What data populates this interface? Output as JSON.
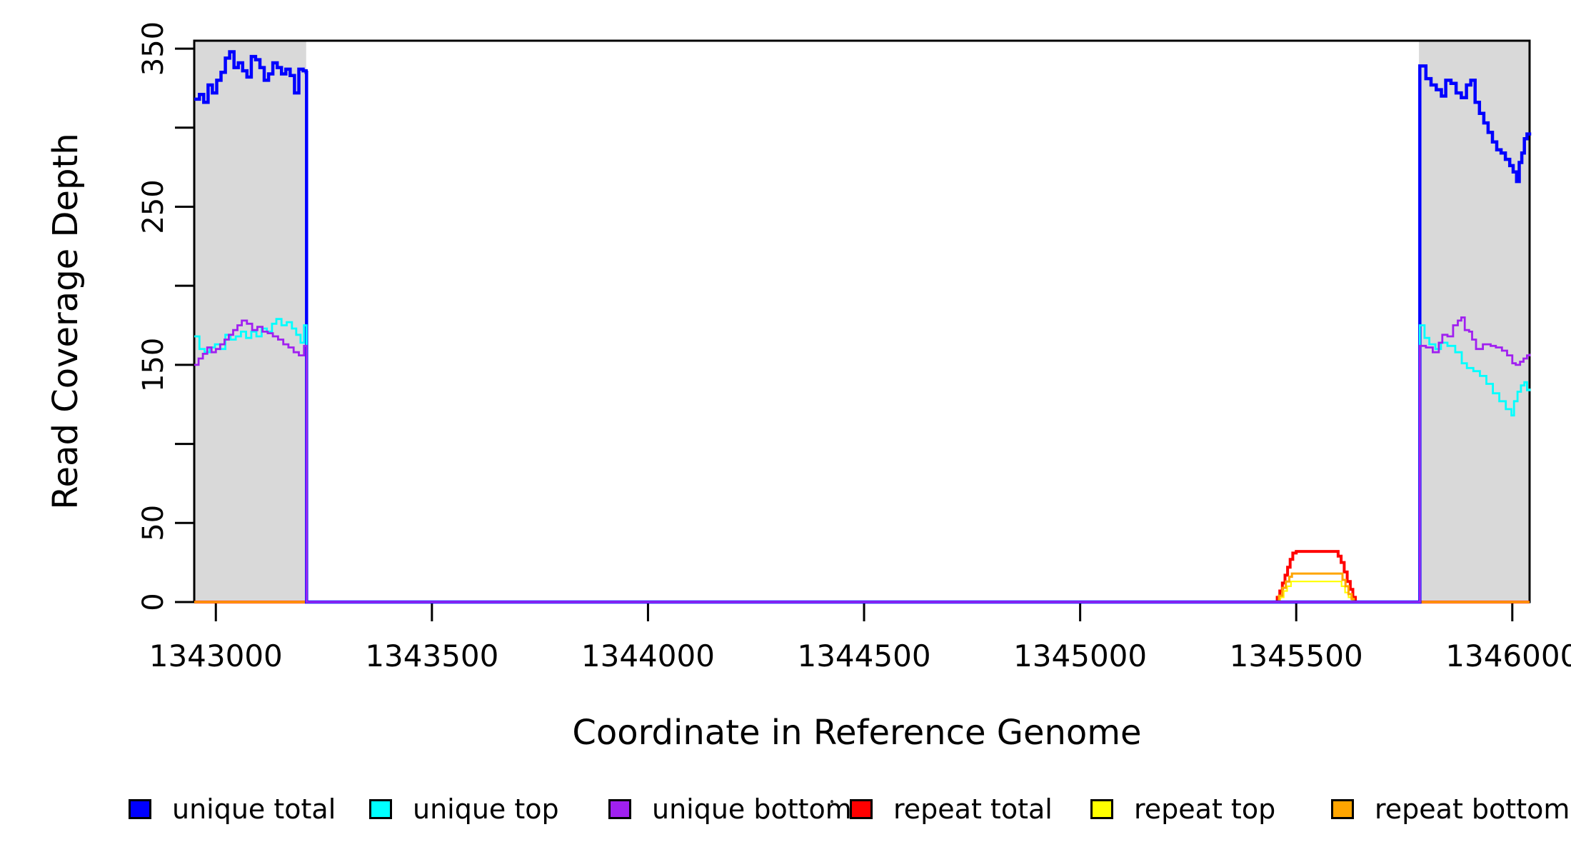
{
  "chart_data": {
    "type": "line",
    "title": "",
    "xlabel": "Coordinate in Reference Genome",
    "ylabel": "Read Coverage Depth",
    "xlim": [
      1342950,
      1346040
    ],
    "ylim": [
      0,
      355
    ],
    "grid": false,
    "legend_position": "bottom",
    "x_ticks": [
      1343000,
      1343500,
      1344000,
      1344500,
      1345000,
      1345500,
      1346000
    ],
    "x_tick_labels": [
      "1343000",
      "1343500",
      "1344000",
      "1344500",
      "1345000",
      "1345500",
      "1346000"
    ],
    "y_ticks": [
      0,
      50,
      100,
      150,
      200,
      250,
      300,
      350
    ],
    "y_tick_labels": [
      "0",
      "50",
      "",
      "150",
      "",
      "250",
      "",
      "350"
    ],
    "shaded_regions": [
      {
        "name": "left-repeat-flank-shading",
        "x0": 1342950,
        "x1": 1343209,
        "color": "#D9D9D9"
      },
      {
        "name": "right-repeat-flank-shading",
        "x0": 1345784,
        "x1": 1346040,
        "color": "#D9D9D9"
      }
    ],
    "series": [
      {
        "name": "repeat total",
        "color": "#FF0000",
        "line_width": 4,
        "points": [
          [
            1342950,
            0
          ],
          [
            1345450,
            0
          ],
          [
            1345456,
            3
          ],
          [
            1345462,
            7
          ],
          [
            1345468,
            12
          ],
          [
            1345474,
            17
          ],
          [
            1345480,
            22
          ],
          [
            1345486,
            27
          ],
          [
            1345492,
            31
          ],
          [
            1345500,
            32
          ],
          [
            1345590,
            32
          ],
          [
            1345597,
            29
          ],
          [
            1345604,
            25
          ],
          [
            1345611,
            19
          ],
          [
            1345618,
            13
          ],
          [
            1345625,
            8
          ],
          [
            1345631,
            3
          ],
          [
            1345637,
            0
          ],
          [
            1346040,
            0
          ]
        ]
      },
      {
        "name": "repeat top",
        "color": "#FFFF00",
        "line_width": 2.2,
        "points": [
          [
            1342950,
            0
          ],
          [
            1345455,
            0
          ],
          [
            1345463,
            3
          ],
          [
            1345471,
            7
          ],
          [
            1345479,
            10
          ],
          [
            1345488,
            13
          ],
          [
            1345597,
            13
          ],
          [
            1345605,
            10
          ],
          [
            1345613,
            6
          ],
          [
            1345621,
            3
          ],
          [
            1345629,
            0
          ],
          [
            1346040,
            0
          ]
        ]
      },
      {
        "name": "repeat bottom",
        "color": "#FFA500",
        "line_width": 3,
        "points": [
          [
            1342950,
            0
          ],
          [
            1345452,
            0
          ],
          [
            1345460,
            4
          ],
          [
            1345468,
            9
          ],
          [
            1345476,
            13
          ],
          [
            1345484,
            16
          ],
          [
            1345490,
            18
          ],
          [
            1345600,
            18
          ],
          [
            1345607,
            14
          ],
          [
            1345614,
            10
          ],
          [
            1345621,
            5
          ],
          [
            1345628,
            2
          ],
          [
            1345633,
            0
          ],
          [
            1346040,
            0
          ]
        ]
      },
      {
        "name": "unique total",
        "color": "#0000FF",
        "line_width": 4.5,
        "points": [
          [
            1342950,
            318
          ],
          [
            1342962,
            321
          ],
          [
            1342972,
            316
          ],
          [
            1342982,
            327
          ],
          [
            1342992,
            322
          ],
          [
            1343002,
            330
          ],
          [
            1343012,
            335
          ],
          [
            1343022,
            344
          ],
          [
            1343032,
            348
          ],
          [
            1343042,
            338
          ],
          [
            1343052,
            341
          ],
          [
            1343062,
            336
          ],
          [
            1343072,
            332
          ],
          [
            1343082,
            345
          ],
          [
            1343092,
            343
          ],
          [
            1343102,
            338
          ],
          [
            1343112,
            330
          ],
          [
            1343122,
            334
          ],
          [
            1343132,
            341
          ],
          [
            1343142,
            338
          ],
          [
            1343152,
            334
          ],
          [
            1343162,
            337
          ],
          [
            1343172,
            333
          ],
          [
            1343182,
            322
          ],
          [
            1343192,
            337
          ],
          [
            1343202,
            336
          ],
          [
            1343209,
            335
          ],
          [
            1343210,
            0
          ],
          [
            1345785,
            0
          ],
          [
            1345786,
            339
          ],
          [
            1345800,
            331
          ],
          [
            1345812,
            327
          ],
          [
            1345824,
            324
          ],
          [
            1345836,
            320
          ],
          [
            1345846,
            330
          ],
          [
            1345858,
            328
          ],
          [
            1345870,
            322
          ],
          [
            1345882,
            319
          ],
          [
            1345894,
            327
          ],
          [
            1345904,
            330
          ],
          [
            1345914,
            316
          ],
          [
            1345924,
            309
          ],
          [
            1345934,
            303
          ],
          [
            1345944,
            297
          ],
          [
            1345954,
            291
          ],
          [
            1345964,
            286
          ],
          [
            1345974,
            284
          ],
          [
            1345984,
            280
          ],
          [
            1345994,
            276
          ],
          [
            1346002,
            272
          ],
          [
            1346010,
            266
          ],
          [
            1346016,
            278
          ],
          [
            1346022,
            284
          ],
          [
            1346028,
            293
          ],
          [
            1346034,
            296
          ],
          [
            1346040,
            295
          ]
        ]
      },
      {
        "name": "unique top",
        "color": "#00FFFF",
        "line_width": 2.8,
        "points": [
          [
            1342950,
            168
          ],
          [
            1342962,
            160
          ],
          [
            1342974,
            158
          ],
          [
            1342986,
            161
          ],
          [
            1342998,
            163
          ],
          [
            1343010,
            160
          ],
          [
            1343022,
            169
          ],
          [
            1343034,
            166
          ],
          [
            1343046,
            168
          ],
          [
            1343058,
            171
          ],
          [
            1343070,
            167
          ],
          [
            1343082,
            171
          ],
          [
            1343094,
            168
          ],
          [
            1343106,
            173
          ],
          [
            1343118,
            171
          ],
          [
            1343130,
            176
          ],
          [
            1343140,
            179
          ],
          [
            1343152,
            175
          ],
          [
            1343164,
            177
          ],
          [
            1343176,
            173
          ],
          [
            1343186,
            169
          ],
          [
            1343196,
            164
          ],
          [
            1343204,
            175
          ],
          [
            1343210,
            0
          ],
          [
            1345785,
            0
          ],
          [
            1345786,
            175
          ],
          [
            1345797,
            167
          ],
          [
            1345808,
            163
          ],
          [
            1345822,
            160
          ],
          [
            1345835,
            164
          ],
          [
            1345850,
            162
          ],
          [
            1345868,
            158
          ],
          [
            1345883,
            151
          ],
          [
            1345895,
            148
          ],
          [
            1345910,
            146
          ],
          [
            1345925,
            143
          ],
          [
            1345940,
            138
          ],
          [
            1345955,
            132
          ],
          [
            1345970,
            127
          ],
          [
            1345985,
            122
          ],
          [
            1345998,
            118
          ],
          [
            1346004,
            127
          ],
          [
            1346012,
            133
          ],
          [
            1346020,
            137
          ],
          [
            1346028,
            139
          ],
          [
            1346034,
            134
          ],
          [
            1346040,
            135
          ]
        ]
      },
      {
        "name": "unique bottom",
        "color": "#A020F0",
        "line_width": 2.8,
        "points": [
          [
            1342950,
            150
          ],
          [
            1342960,
            154
          ],
          [
            1342970,
            157
          ],
          [
            1342980,
            161
          ],
          [
            1342990,
            158
          ],
          [
            1343000,
            160
          ],
          [
            1343010,
            163
          ],
          [
            1343020,
            166
          ],
          [
            1343030,
            169
          ],
          [
            1343040,
            172
          ],
          [
            1343050,
            175
          ],
          [
            1343060,
            178
          ],
          [
            1343072,
            176
          ],
          [
            1343084,
            172
          ],
          [
            1343096,
            174
          ],
          [
            1343108,
            171
          ],
          [
            1343120,
            170
          ],
          [
            1343132,
            168
          ],
          [
            1343144,
            166
          ],
          [
            1343156,
            163
          ],
          [
            1343168,
            161
          ],
          [
            1343180,
            158
          ],
          [
            1343192,
            156
          ],
          [
            1343204,
            162
          ],
          [
            1343210,
            0
          ],
          [
            1345785,
            0
          ],
          [
            1345786,
            162
          ],
          [
            1345800,
            161
          ],
          [
            1345816,
            158
          ],
          [
            1345830,
            164
          ],
          [
            1345838,
            169
          ],
          [
            1345850,
            168
          ],
          [
            1345863,
            175
          ],
          [
            1345874,
            178
          ],
          [
            1345882,
            180
          ],
          [
            1345890,
            172
          ],
          [
            1345900,
            171
          ],
          [
            1345907,
            166
          ],
          [
            1345916,
            160
          ],
          [
            1345932,
            163
          ],
          [
            1345950,
            162
          ],
          [
            1345962,
            161
          ],
          [
            1345976,
            159
          ],
          [
            1345988,
            156
          ],
          [
            1346000,
            151
          ],
          [
            1346008,
            150
          ],
          [
            1346018,
            152
          ],
          [
            1346026,
            154
          ],
          [
            1346034,
            156
          ],
          [
            1346040,
            157
          ]
        ]
      }
    ],
    "legend": [
      {
        "label": "unique total",
        "color": "#0000FF"
      },
      {
        "label": "unique top",
        "color": "#00FFFF"
      },
      {
        "label": "unique bottom",
        "color": "#A020F0"
      },
      {
        "label": "repeat total",
        "color": "#FF0000"
      },
      {
        "label": "repeat top",
        "color": "#FFFF00"
      },
      {
        "label": "repeat bottom",
        "color": "#FFA500"
      }
    ],
    "colors": {
      "axis": "#000000",
      "text": "#000000",
      "plot_background": "#FFFFFF",
      "shading": "#D9D9D9"
    }
  }
}
